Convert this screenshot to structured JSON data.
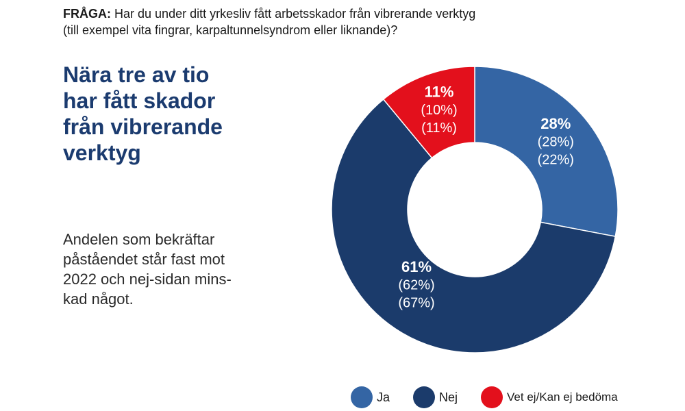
{
  "question": {
    "prefix": "FRÅGA:",
    "line1": "Har du under ditt yrkesliv fått arbetsskador från vibrerande verktyg",
    "line2": "(till exempel vita fingrar, karpaltunnelsyndrom eller liknande)?"
  },
  "headline": {
    "lines": [
      "Nära tre av tio",
      "har fått skador",
      "från vibrerande",
      "verktyg"
    ]
  },
  "body": {
    "lines": [
      "Andelen som bekräftar",
      "påståendet står fast mot",
      "2022 och nej-sidan mins-",
      "kad något."
    ]
  },
  "chart_data": {
    "type": "pie",
    "donut": true,
    "start_angle_deg": 0,
    "direction": "clockwise",
    "slices": [
      {
        "name": "Ja",
        "value": 28,
        "label": "28%",
        "prev1": "(28%)",
        "prev2": "(22%)",
        "color": "#3465a4"
      },
      {
        "name": "Nej",
        "value": 61,
        "label": "61%",
        "prev1": "(62%)",
        "prev2": "(67%)",
        "color": "#1b3b6b"
      },
      {
        "name": "Vet ej/Kan ej bedöma",
        "value": 11,
        "label": "11%",
        "prev1": "(10%)",
        "prev2": "(11%)",
        "color": "#e3101c"
      }
    ],
    "legend_position": "bottom"
  },
  "legend": {
    "items": [
      {
        "label": "Ja",
        "color": "#3465a4"
      },
      {
        "label": "Nej",
        "color": "#1b3b6b"
      },
      {
        "label": "Vet ej/Kan ej bedöma",
        "color": "#e3101c"
      }
    ]
  }
}
